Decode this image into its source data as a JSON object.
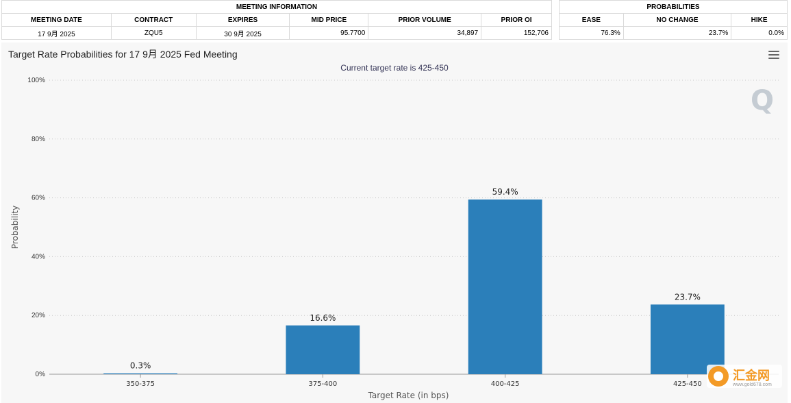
{
  "meeting_info": {
    "section_title": "MEETING INFORMATION",
    "headers": [
      "MEETING DATE",
      "CONTRACT",
      "EXPIRES",
      "MID PRICE",
      "PRIOR VOLUME",
      "PRIOR OI"
    ],
    "row": {
      "meeting_date": "17 9月 2025",
      "contract": "ZQU5",
      "expires": "30 9月 2025",
      "mid_price": "95.7700",
      "prior_volume": "34,897",
      "prior_oi": "152,706"
    }
  },
  "probabilities": {
    "section_title": "PROBABILITIES",
    "headers": [
      "EASE",
      "NO CHANGE",
      "HIKE"
    ],
    "row": {
      "ease": "76.3%",
      "no_change": "23.7%",
      "hike": "0.0%"
    }
  },
  "watermark": "Q",
  "brand": {
    "name": "汇金网",
    "site": "www.gold678.com"
  },
  "colors": {
    "bar": "#2b7fba",
    "accent_orange": "#f39a26"
  },
  "chart_data": {
    "type": "bar",
    "title": "Target Rate Probabilities for 17 9月 2025 Fed Meeting",
    "subtitle": "Current target rate is 425-450",
    "xlabel": "Target Rate (in bps)",
    "ylabel": "Probability",
    "categories": [
      "350-375",
      "375-400",
      "400-425",
      "425-450"
    ],
    "values": [
      0.3,
      16.6,
      59.4,
      23.7
    ],
    "data_labels": [
      "0.3%",
      "16.6%",
      "59.4%",
      "23.7%"
    ],
    "y_ticks": [
      0,
      20,
      40,
      60,
      80,
      100
    ],
    "y_tick_labels": [
      "0%",
      "20%",
      "40%",
      "60%",
      "80%",
      "100%"
    ],
    "ylim": [
      0,
      100
    ],
    "grid": true,
    "legend": "none"
  }
}
